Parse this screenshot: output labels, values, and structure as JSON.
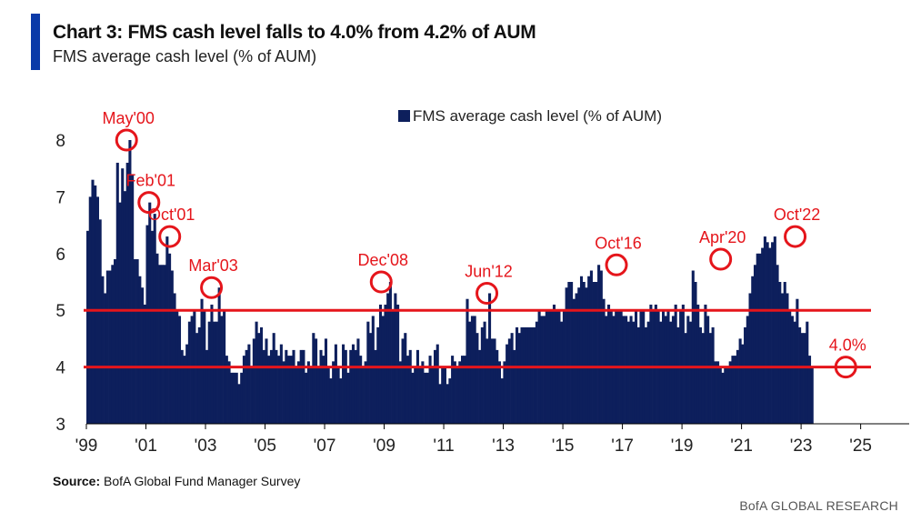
{
  "title": "Chart 3: FMS cash level falls to 4.0% from 4.2% of AUM",
  "subtitle": "FMS average cash level (% of AUM)",
  "source_label": "Source:",
  "source_text": "BofA Global Fund Manager Survey",
  "brand": "BofA GLOBAL RESEARCH",
  "colors": {
    "accent": "#0a3aa8",
    "bars": "#0d1f5c",
    "threshold": "#e5151b",
    "annotation": "#e5151b"
  },
  "chart_data": {
    "type": "bar",
    "legend": {
      "label": "FMS average cash level (% of AUM)",
      "position": "top-center"
    },
    "ylim": [
      3,
      8
    ],
    "yticks": [
      3,
      4,
      5,
      6,
      7,
      8
    ],
    "xlim": [
      1999,
      2025.5
    ],
    "xticks": [
      {
        "x": 1999,
        "label": "'99"
      },
      {
        "x": 2001,
        "label": "'01"
      },
      {
        "x": 2003,
        "label": "'03"
      },
      {
        "x": 2005,
        "label": "'05"
      },
      {
        "x": 2007,
        "label": "'07"
      },
      {
        "x": 2009,
        "label": "'09"
      },
      {
        "x": 2011,
        "label": "'11"
      },
      {
        "x": 2013,
        "label": "'13"
      },
      {
        "x": 2015,
        "label": "'15"
      },
      {
        "x": 2017,
        "label": "'17"
      },
      {
        "x": 2019,
        "label": "'19"
      },
      {
        "x": 2021,
        "label": "'21"
      },
      {
        "x": 2023,
        "label": "'23"
      },
      {
        "x": 2025,
        "label": "'25"
      }
    ],
    "threshold_lines": [
      5.0,
      4.0
    ],
    "grid": false,
    "annotations": [
      {
        "label": "May'00",
        "x": 2000.35,
        "y": 8.0
      },
      {
        "label": "Feb'01",
        "x": 2001.1,
        "y": 6.9
      },
      {
        "label": "Oct'01",
        "x": 2001.8,
        "y": 6.3
      },
      {
        "label": "Mar'03",
        "x": 2003.2,
        "y": 5.4
      },
      {
        "label": "Dec'08",
        "x": 2008.9,
        "y": 5.5
      },
      {
        "label": "Jun'12",
        "x": 2012.45,
        "y": 5.3
      },
      {
        "label": "Oct'16",
        "x": 2016.8,
        "y": 5.8
      },
      {
        "label": "Apr'20",
        "x": 2020.3,
        "y": 5.9
      },
      {
        "label": "Oct'22",
        "x": 2022.8,
        "y": 6.3
      },
      {
        "label": "4.0%",
        "x": 2024.5,
        "y": 4.0
      }
    ],
    "series": [
      {
        "start": 1999.0,
        "step": 0.0833,
        "values": [
          6.4,
          7.0,
          7.3,
          7.2,
          7.0,
          6.6,
          5.6,
          5.3,
          5.7,
          5.7,
          5.8,
          5.9,
          7.6,
          6.9,
          7.5,
          7.1,
          7.6,
          8.0,
          7.4,
          5.9,
          5.9,
          5.6,
          5.4,
          5.1,
          6.5,
          6.9,
          6.4,
          6.7,
          6.0,
          5.8,
          5.8,
          5.8,
          6.3,
          6.0,
          5.7,
          5.3,
          5.0,
          4.9,
          4.3,
          4.2,
          4.4,
          4.8,
          4.9,
          5.0,
          4.6,
          4.7,
          5.2,
          5.0,
          4.3,
          4.8,
          5.1,
          4.8,
          4.8,
          5.4,
          4.9,
          5.0,
          4.2,
          4.1,
          3.9,
          3.9,
          3.9,
          3.7,
          3.9,
          4.2,
          4.3,
          4.4,
          4.0,
          4.5,
          4.8,
          4.6,
          4.7,
          4.3,
          4.5,
          4.2,
          4.3,
          4.6,
          4.3,
          4.2,
          4.4,
          4.1,
          4.3,
          4.2,
          4.2,
          4.3,
          4.0,
          4.1,
          4.3,
          4.3,
          3.9,
          4.1,
          4.0,
          4.6,
          4.5,
          4.0,
          4.3,
          4.2,
          4.5,
          4.0,
          3.8,
          4.1,
          4.4,
          4.0,
          3.8,
          4.4,
          4.3,
          3.9,
          4.3,
          4.4,
          4.3,
          4.5,
          4.2,
          4.0,
          4.1,
          4.8,
          4.6,
          4.9,
          4.3,
          4.7,
          5.1,
          4.9,
          5.1,
          5.3,
          5.5,
          5.0,
          5.3,
          5.1,
          4.1,
          4.5,
          4.6,
          4.2,
          4.3,
          3.9,
          4.0,
          4.3,
          4.0,
          4.1,
          3.9,
          3.9,
          4.2,
          4.0,
          4.3,
          4.4,
          3.7,
          4.0,
          4.0,
          3.7,
          3.8,
          4.2,
          4.1,
          4.0,
          4.1,
          4.2,
          4.2,
          5.2,
          4.8,
          4.9,
          4.9,
          4.6,
          4.3,
          4.7,
          4.8,
          4.5,
          5.3,
          4.5,
          4.5,
          4.3,
          4.1,
          3.8,
          4.1,
          4.4,
          4.5,
          4.6,
          4.3,
          4.7,
          4.6,
          4.7,
          4.7,
          4.7,
          4.7,
          4.7,
          4.7,
          4.8,
          5.0,
          4.9,
          4.9,
          5.0,
          5.0,
          5.0,
          5.1,
          5.0,
          5.0,
          4.8,
          5.0,
          5.4,
          5.5,
          5.5,
          5.2,
          5.3,
          5.4,
          5.6,
          5.5,
          5.4,
          5.6,
          5.7,
          5.5,
          5.5,
          5.8,
          5.7,
          5.2,
          4.9,
          5.1,
          5.0,
          4.9,
          5.0,
          5.0,
          5.0,
          4.9,
          4.9,
          4.8,
          4.9,
          4.8,
          5.0,
          4.7,
          5.0,
          5.0,
          4.7,
          4.8,
          5.1,
          5.0,
          5.1,
          5.0,
          4.8,
          5.0,
          4.9,
          5.0,
          4.8,
          4.9,
          5.1,
          4.7,
          5.0,
          5.1,
          4.6,
          4.9,
          4.8,
          5.7,
          5.5,
          5.1,
          4.7,
          4.6,
          5.1,
          4.9,
          4.6,
          4.7,
          4.1,
          4.1,
          4.0,
          3.9,
          4.0,
          4.0,
          4.1,
          4.2,
          4.2,
          4.3,
          4.5,
          4.4,
          4.7,
          4.9,
          5.3,
          5.6,
          5.8,
          6.0,
          6.0,
          6.1,
          6.3,
          6.2,
          6.1,
          6.2,
          6.3,
          5.8,
          5.5,
          5.3,
          5.5,
          5.3,
          5.0,
          4.9,
          4.8,
          5.2,
          4.7,
          4.6,
          4.6,
          4.8,
          4.2,
          4.0
        ]
      }
    ]
  }
}
